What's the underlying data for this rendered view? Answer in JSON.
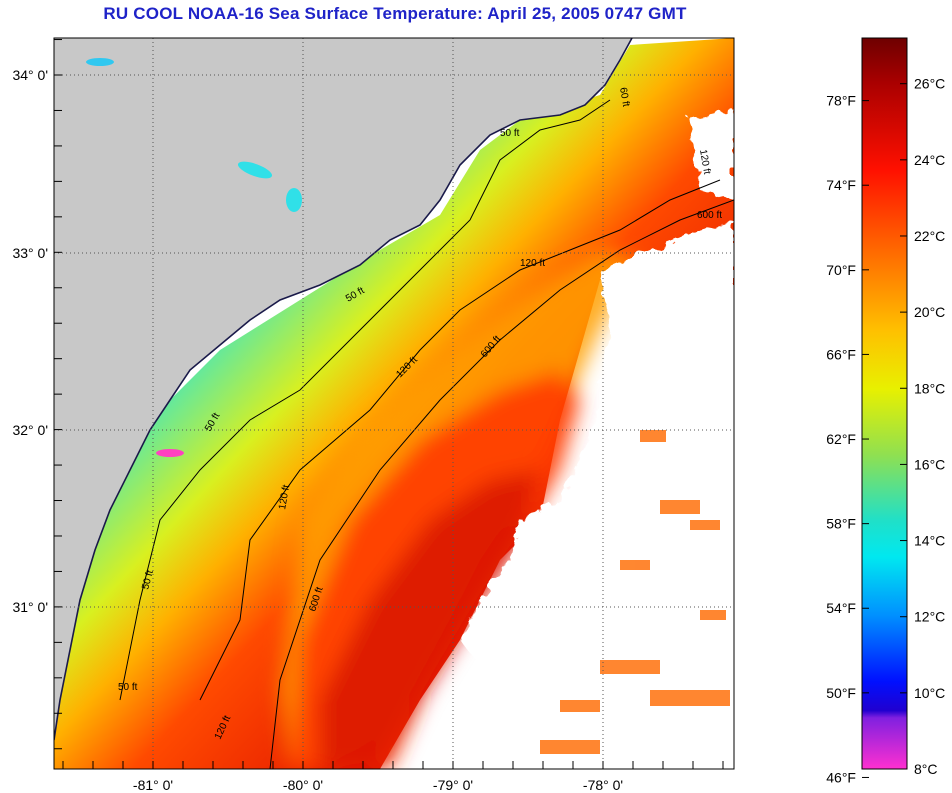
{
  "title": "RU COOL  NOAA-16  Sea Surface Temperature:  April 25, 2005 0747 GMT",
  "map": {
    "lat_labels": [
      "34° 0'",
      "33° 0'",
      "32° 0'",
      "31° 0'"
    ],
    "lon_labels": [
      "-81° 0'",
      "-80° 0'",
      "-79° 0'",
      "-78° 0'"
    ],
    "contour_labels": [
      "50 ft",
      "50 ft",
      "50 ft",
      "50 ft",
      "50 ft",
      "120 ft",
      "120 ft",
      "120 ft",
      "120 ft",
      "600 ft",
      "600 ft",
      "600 ft",
      "60 ft",
      "120 ft"
    ],
    "colors": {
      "land": "#c8c8c8",
      "cloud": "#ffffff",
      "coastline": "#1a1a4a",
      "contour": "#000000",
      "grid": "#555555"
    }
  },
  "colorbar": {
    "celsius_labels": [
      "26°C",
      "24°C",
      "22°C",
      "20°C",
      "18°C",
      "16°C",
      "14°C",
      "12°C",
      "10°C",
      "8°C"
    ],
    "fahrenheit_labels": [
      "78°F",
      "74°F",
      "70°F",
      "66°F",
      "62°F",
      "58°F",
      "54°F",
      "50°F",
      "46°F"
    ],
    "range_c": [
      8,
      27.2
    ]
  }
}
